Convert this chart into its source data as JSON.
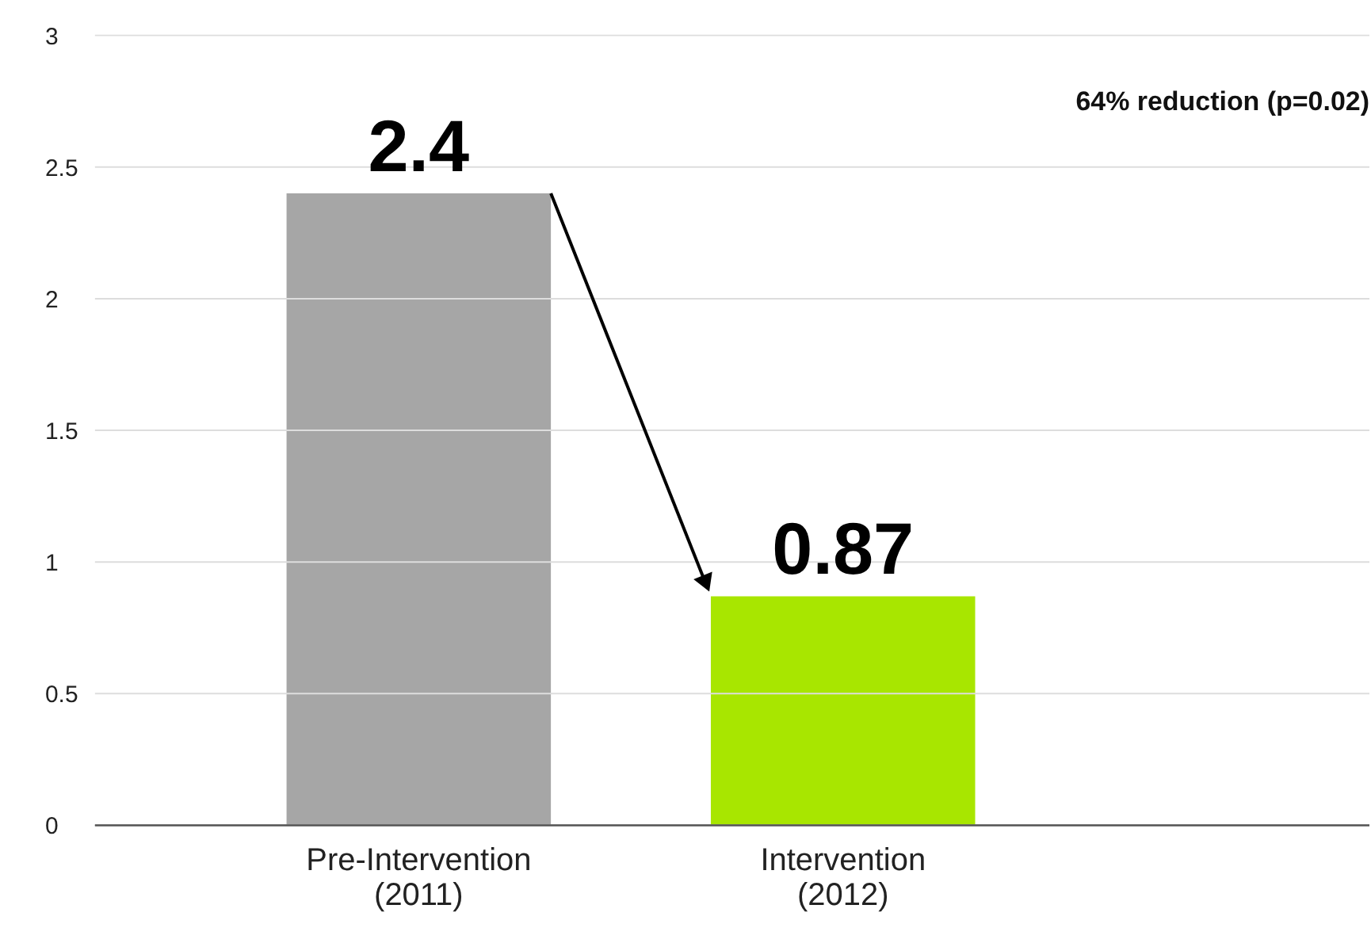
{
  "chart_data": {
    "type": "bar",
    "categories": [
      "Pre-Intervention\n(2011)",
      "Intervention\n(2012)"
    ],
    "values": [
      2.4,
      0.87
    ],
    "colors": [
      "#a6a6a6",
      "#a8e600"
    ],
    "ylim": [
      0,
      3
    ],
    "yticks": [
      0,
      0.5,
      1,
      1.5,
      2,
      2.5,
      3
    ],
    "grid": "y",
    "data_labels": true,
    "annotations": [
      "64% reduction (p=0.02)"
    ]
  }
}
